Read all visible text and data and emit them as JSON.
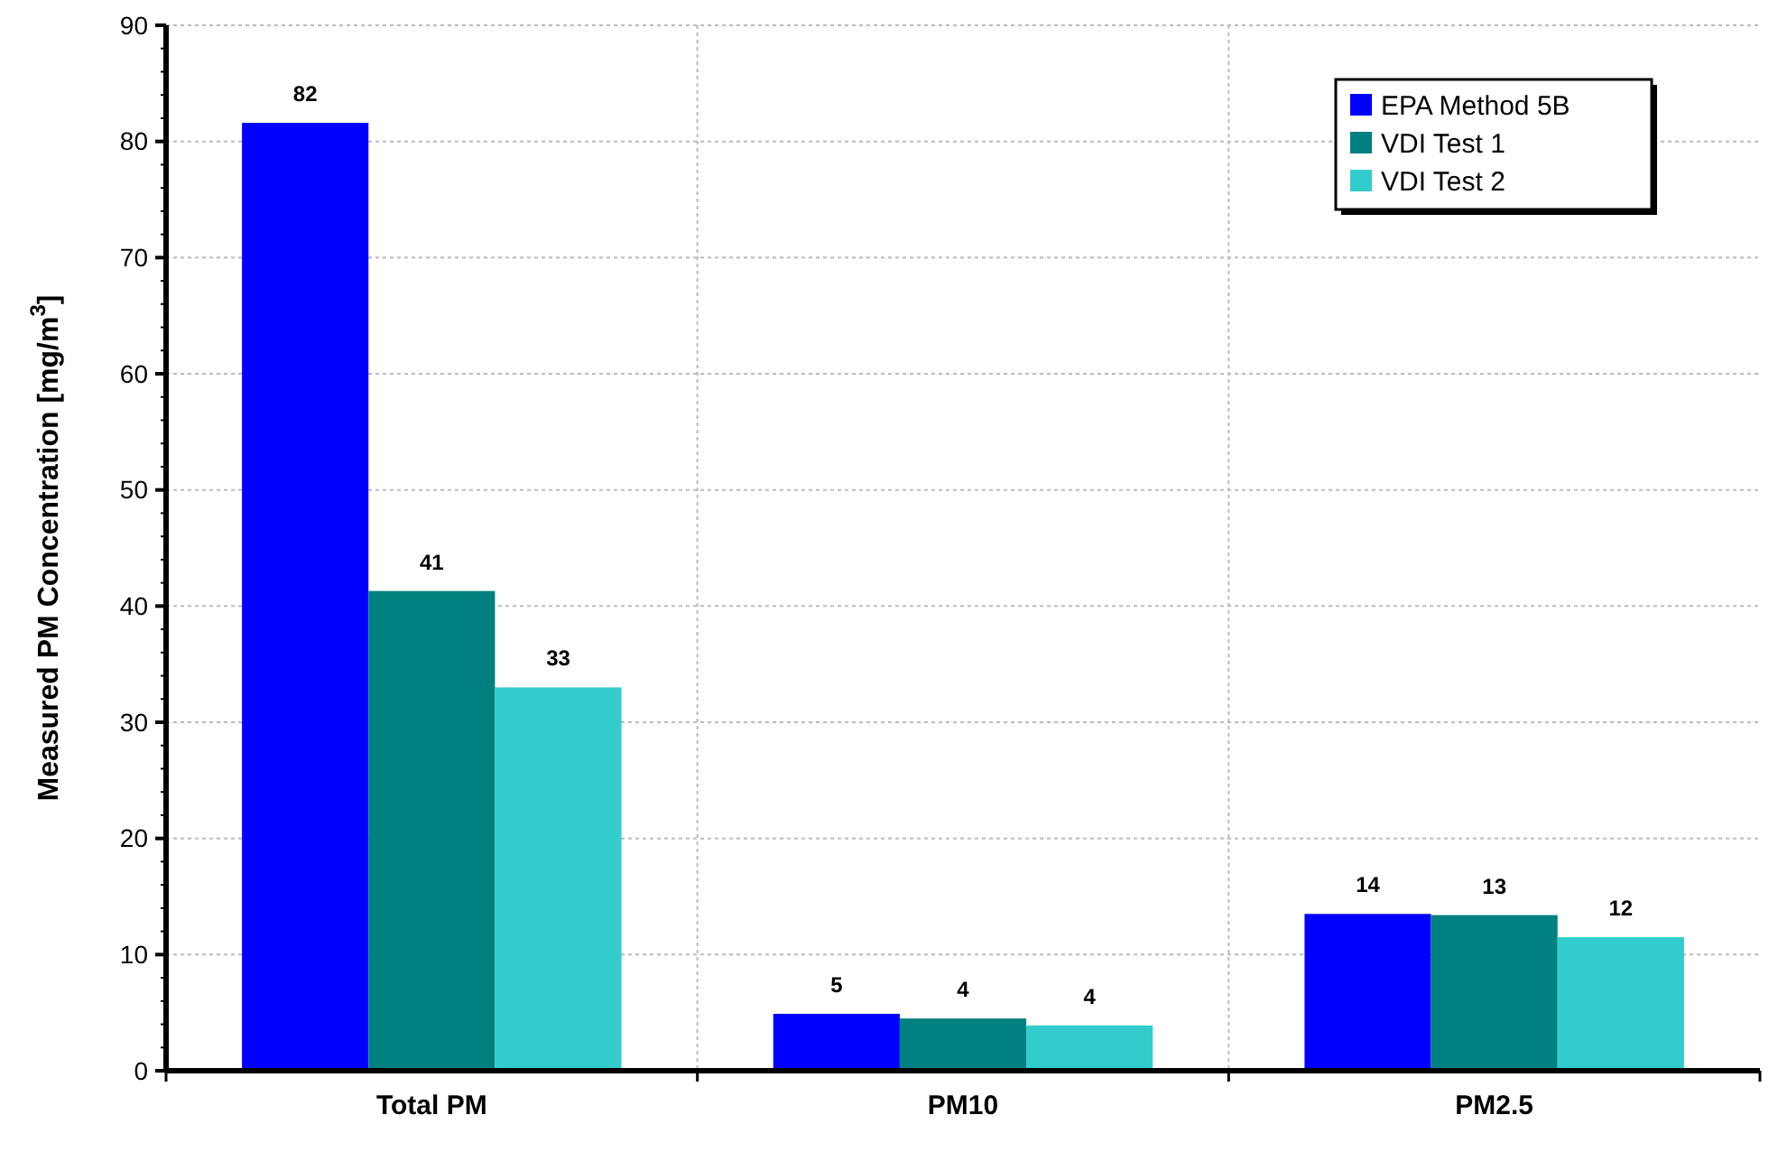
{
  "chart_data": {
    "type": "bar",
    "ylabel": "Measured PM Concentration [mg/m$^{3}$]",
    "categories": [
      "Total PM",
      "PM10",
      "PM2.5"
    ],
    "series": [
      {
        "name": "EPA Method 5B",
        "color": "#0000ff",
        "values": [
          81.6,
          4.9,
          13.5
        ],
        "value_labels": [
          "82",
          "5",
          "14"
        ]
      },
      {
        "name": "VDI Test 1",
        "color": "#008080",
        "values": [
          41.3,
          4.5,
          13.4
        ],
        "value_labels": [
          "41",
          "4",
          "13"
        ]
      },
      {
        "name": "VDI Test 2",
        "color": "#33cccc",
        "values": [
          33,
          3.9,
          11.5
        ],
        "value_labels": [
          "33",
          "4",
          "12"
        ]
      }
    ],
    "ylim": [
      0,
      90
    ],
    "yticks": [
      0,
      {
        "value": 2,
        "label": null
      },
      {
        "value": 4,
        "label": null
      },
      {
        "value": 6,
        "label": null
      },
      {
        "value": 8,
        "label": null
      },
      10,
      {
        "value": 12,
        "label": null
      },
      {
        "value": 14,
        "label": null
      },
      {
        "value": 16,
        "label": null
      },
      {
        "value": 18,
        "label": null
      },
      20,
      {
        "value": 22,
        "label": null
      },
      {
        "value": 24,
        "label": null
      },
      {
        "value": 26,
        "label": null
      },
      {
        "value": 28,
        "label": null
      },
      30,
      {
        "value": 32,
        "label": null
      },
      {
        "value": 34,
        "label": null
      },
      {
        "value": 36,
        "label": null
      },
      {
        "value": 38,
        "label": null
      },
      40,
      {
        "value": 42,
        "label": null
      },
      {
        "value": 44,
        "label": null
      },
      {
        "value": 46,
        "label": null
      },
      {
        "value": 48,
        "label": null
      },
      50,
      {
        "value": 52,
        "label": null
      },
      {
        "value": 54,
        "label": null
      },
      {
        "value": 56,
        "label": null
      },
      {
        "value": 58,
        "label": null
      },
      60,
      {
        "value": 62,
        "label": null
      },
      {
        "value": 64,
        "label": null
      },
      {
        "value": 66,
        "label": null
      },
      {
        "value": 68,
        "label": null
      },
      70,
      {
        "value": 72,
        "label": null
      },
      {
        "value": 74,
        "label": null
      },
      {
        "value": 76,
        "label": null
      },
      {
        "value": 78,
        "label": null
      },
      80,
      {
        "value": 82,
        "label": null
      },
      {
        "value": 84,
        "label": null
      },
      {
        "value": 86,
        "label": null
      },
      {
        "value": 88,
        "label": null
      },
      90
    ],
    "grid": true,
    "legend": "top right"
  }
}
